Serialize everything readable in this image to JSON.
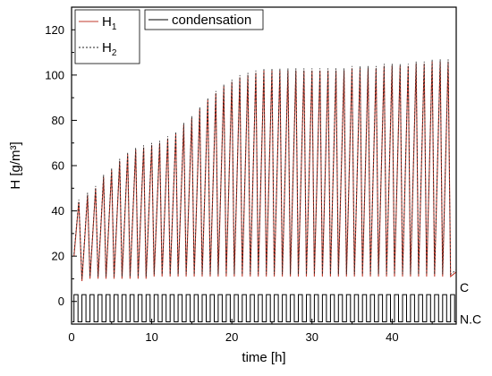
{
  "chart_data": {
    "type": "line",
    "xlabel": "time [h]",
    "ylabel": "H [g/m³]",
    "xlim": [
      0,
      48
    ],
    "ylim": [
      -10,
      130
    ],
    "x_ticks": [
      0,
      10,
      20,
      30,
      40
    ],
    "y_ticks": [
      0,
      20,
      40,
      60,
      80,
      100,
      120
    ],
    "grid": false,
    "legend": {
      "placement": "top-left",
      "entries": [
        {
          "main": "H",
          "sub": "1",
          "series": "H1"
        },
        {
          "main": "H",
          "sub": "2",
          "series": "H2"
        },
        {
          "main": "condensation",
          "sub": "",
          "series": "condensation"
        }
      ]
    },
    "right_labels": {
      "high": "C",
      "low": "N.C",
      "high_value": 3,
      "low_value": -9
    },
    "cycle_period_h": 1,
    "cycle_start_h": 0.3,
    "series": [
      {
        "name": "H1",
        "color": "#c0392b",
        "style": "solid",
        "peaks": [
          [
            0.9,
            44
          ],
          [
            2,
            47
          ],
          [
            3,
            50
          ],
          [
            4,
            55
          ],
          [
            5,
            58
          ],
          [
            6,
            62
          ],
          [
            7,
            65
          ],
          [
            8,
            67
          ],
          [
            9,
            68
          ],
          [
            10,
            69
          ],
          [
            11,
            70
          ],
          [
            12,
            72
          ],
          [
            13,
            74
          ],
          [
            14,
            78
          ],
          [
            15,
            81
          ],
          [
            16,
            85
          ],
          [
            17,
            89
          ],
          [
            18,
            92
          ],
          [
            19,
            95
          ],
          [
            20,
            97
          ],
          [
            21,
            99
          ],
          [
            22,
            100
          ],
          [
            23,
            101
          ],
          [
            24,
            102
          ],
          [
            25,
            102
          ],
          [
            26,
            102
          ],
          [
            27,
            102
          ],
          [
            28,
            102
          ],
          [
            29,
            102
          ],
          [
            30,
            102
          ],
          [
            31,
            102
          ],
          [
            32,
            102
          ],
          [
            33,
            102
          ],
          [
            34,
            102
          ],
          [
            35,
            103
          ],
          [
            36,
            103
          ],
          [
            37,
            103
          ],
          [
            38,
            103
          ],
          [
            39,
            104
          ],
          [
            40,
            104
          ],
          [
            41,
            104
          ],
          [
            42,
            104
          ],
          [
            43,
            105
          ],
          [
            44,
            105
          ],
          [
            45,
            106
          ],
          [
            46,
            106
          ],
          [
            47,
            106
          ]
        ],
        "troughs": [
          [
            0.3,
            20
          ],
          [
            1.3,
            9
          ],
          [
            2.3,
            10
          ],
          [
            3.3,
            10
          ],
          [
            4.3,
            10
          ],
          [
            5.3,
            10
          ],
          [
            6.3,
            10
          ],
          [
            7.3,
            10
          ],
          [
            8.3,
            10
          ],
          [
            9.3,
            10
          ],
          [
            10.3,
            11
          ],
          [
            11.3,
            11
          ],
          [
            12.3,
            11
          ],
          [
            13.3,
            11
          ],
          [
            14.3,
            11
          ],
          [
            15.3,
            11
          ],
          [
            16.3,
            11
          ],
          [
            17.3,
            11
          ],
          [
            18.3,
            11
          ],
          [
            19.3,
            11
          ],
          [
            20.3,
            11
          ],
          [
            21.3,
            11
          ],
          [
            22.3,
            11
          ],
          [
            23.3,
            11
          ],
          [
            24.3,
            11
          ],
          [
            25.3,
            11
          ],
          [
            26.3,
            11
          ],
          [
            27.3,
            11
          ],
          [
            28.3,
            11
          ],
          [
            29.3,
            11
          ],
          [
            30.3,
            11
          ],
          [
            31.3,
            11
          ],
          [
            32.3,
            11
          ],
          [
            33.3,
            11
          ],
          [
            34.3,
            11
          ],
          [
            35.3,
            11
          ],
          [
            36.3,
            11
          ],
          [
            37.3,
            11
          ],
          [
            38.3,
            11
          ],
          [
            39.3,
            11
          ],
          [
            40.3,
            11
          ],
          [
            41.3,
            11
          ],
          [
            42.3,
            11
          ],
          [
            43.3,
            11
          ],
          [
            44.3,
            11
          ],
          [
            45.3,
            11
          ],
          [
            46.3,
            11
          ],
          [
            47.3,
            11
          ],
          [
            48,
            13
          ]
        ]
      },
      {
        "name": "H2",
        "color": "#222222",
        "style": "dashed",
        "peaks": [
          [
            0.9,
            45
          ],
          [
            2,
            48
          ],
          [
            3,
            51
          ],
          [
            4,
            56
          ],
          [
            5,
            59
          ],
          [
            6,
            63
          ],
          [
            7,
            66
          ],
          [
            8,
            68
          ],
          [
            9,
            69
          ],
          [
            10,
            70
          ],
          [
            11,
            71
          ],
          [
            12,
            73
          ],
          [
            13,
            75
          ],
          [
            14,
            79
          ],
          [
            15,
            82
          ],
          [
            16,
            86
          ],
          [
            17,
            90
          ],
          [
            18,
            93
          ],
          [
            19,
            96
          ],
          [
            20,
            98
          ],
          [
            21,
            100
          ],
          [
            22,
            101
          ],
          [
            23,
            102
          ],
          [
            24,
            103
          ],
          [
            25,
            103
          ],
          [
            26,
            103
          ],
          [
            27,
            103
          ],
          [
            28,
            103
          ],
          [
            29,
            103
          ],
          [
            30,
            103
          ],
          [
            31,
            103
          ],
          [
            32,
            103
          ],
          [
            33,
            103
          ],
          [
            34,
            103
          ],
          [
            35,
            104
          ],
          [
            36,
            104
          ],
          [
            37,
            104
          ],
          [
            38,
            104
          ],
          [
            39,
            105
          ],
          [
            40,
            105
          ],
          [
            41,
            105
          ],
          [
            42,
            105
          ],
          [
            43,
            106
          ],
          [
            44,
            106
          ],
          [
            45,
            107
          ],
          [
            46,
            107
          ],
          [
            47,
            107
          ]
        ],
        "troughs": [
          [
            0.3,
            21
          ],
          [
            1.3,
            10
          ],
          [
            2.3,
            11
          ],
          [
            3.3,
            11
          ],
          [
            4.3,
            11
          ],
          [
            5.3,
            11
          ],
          [
            6.3,
            11
          ],
          [
            7.3,
            11
          ],
          [
            8.3,
            11
          ],
          [
            9.3,
            11
          ],
          [
            10.3,
            12
          ],
          [
            11.3,
            12
          ],
          [
            12.3,
            12
          ],
          [
            13.3,
            12
          ],
          [
            14.3,
            12
          ],
          [
            15.3,
            12
          ],
          [
            16.3,
            12
          ],
          [
            17.3,
            12
          ],
          [
            18.3,
            12
          ],
          [
            19.3,
            12
          ],
          [
            20.3,
            12
          ],
          [
            21.3,
            12
          ],
          [
            22.3,
            12
          ],
          [
            23.3,
            12
          ],
          [
            24.3,
            12
          ],
          [
            25.3,
            12
          ],
          [
            26.3,
            12
          ],
          [
            27.3,
            12
          ],
          [
            28.3,
            12
          ],
          [
            29.3,
            12
          ],
          [
            30.3,
            12
          ],
          [
            31.3,
            12
          ],
          [
            32.3,
            12
          ],
          [
            33.3,
            12
          ],
          [
            34.3,
            12
          ],
          [
            35.3,
            12
          ],
          [
            36.3,
            12
          ],
          [
            37.3,
            12
          ],
          [
            38.3,
            12
          ],
          [
            39.3,
            12
          ],
          [
            40.3,
            12
          ],
          [
            41.3,
            12
          ],
          [
            42.3,
            12
          ],
          [
            43.3,
            12
          ],
          [
            44.3,
            12
          ],
          [
            45.3,
            12
          ],
          [
            46.3,
            12
          ],
          [
            47.3,
            12
          ],
          [
            48,
            14
          ]
        ]
      },
      {
        "name": "condensation",
        "color": "#000000",
        "style": "step",
        "levels": {
          "C": 3,
          "N.C": -9
        }
      }
    ]
  }
}
